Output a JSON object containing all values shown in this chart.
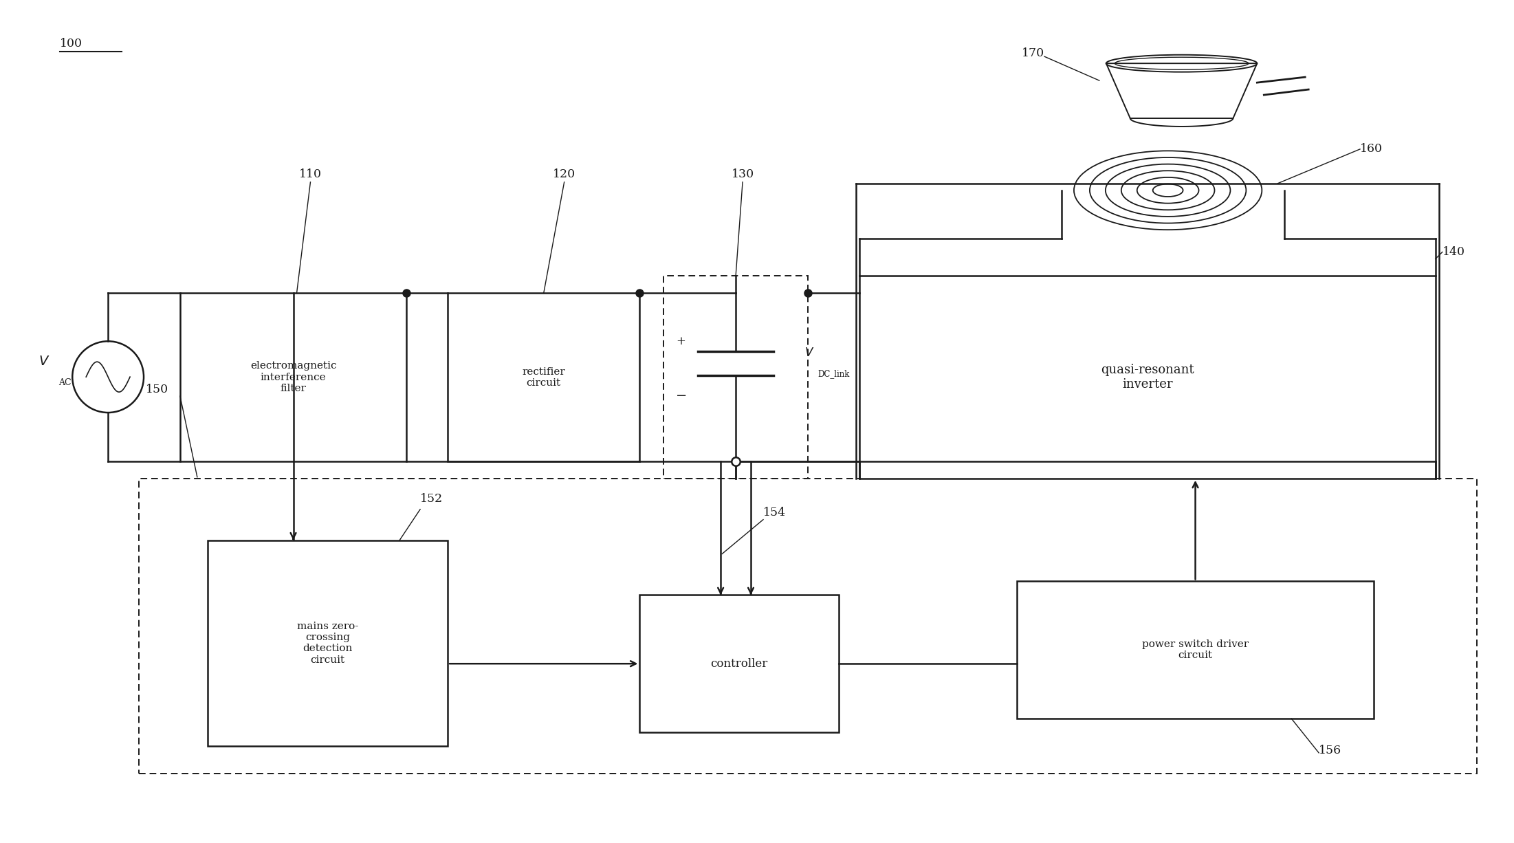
{
  "bg_color": "#ffffff",
  "line_color": "#1a1a1a",
  "label_emf": "electromagnetic\ninterference\nfilter",
  "label_rectifier": "rectifier\ncircuit",
  "label_vdclink_plus": "+",
  "label_vdclink_minus": "-",
  "label_vdclink_v": "V",
  "label_vdclink_sub": "DC_link",
  "label_qri": "quasi-resonant\ninverter",
  "label_mzc": "mains zero-\ncrossing\ndetection\ncircuit",
  "label_ctrl": "controller",
  "label_psdc": "power switch driver\ncircuit",
  "ref_100": "100",
  "ref_110": "110",
  "ref_120": "120",
  "ref_130": "130",
  "ref_140": "140",
  "ref_150": "150",
  "ref_152": "152",
  "ref_154": "154",
  "ref_156": "156",
  "ref_160": "160",
  "ref_170": "170"
}
